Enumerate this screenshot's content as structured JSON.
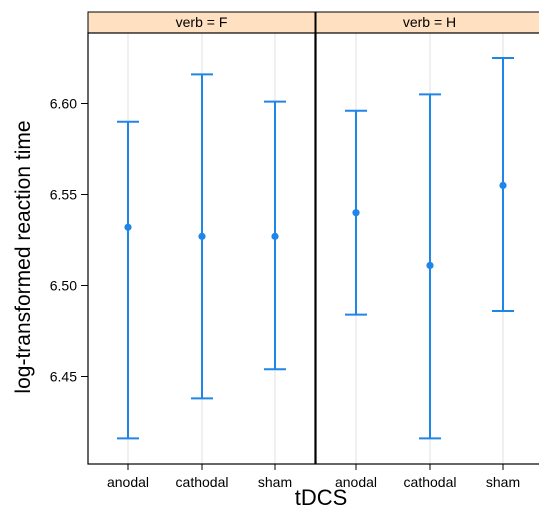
{
  "chart_data": {
    "type": "scatter",
    "subtype": "point-with-error-bars",
    "xlabel": "tDCS",
    "ylabel": "log-transformed reaction time",
    "categories": [
      "anodal",
      "cathodal",
      "sham"
    ],
    "ylim": [
      6.4,
      6.64
    ],
    "yticks": [
      6.45,
      6.5,
      6.55,
      6.6
    ],
    "ytick_labels": [
      "6.45",
      "6.50",
      "6.55",
      "6.60"
    ],
    "grid": "vertical lines at categories",
    "colors": {
      "series": "#1f86e8",
      "strip": "#ffe0c0",
      "grid": "#e5e5e5",
      "frame": "#000000"
    },
    "panels": [
      {
        "label": "verb = F",
        "points": [
          {
            "category": "anodal",
            "mean": 6.532,
            "lower": 6.416,
            "upper": 6.59
          },
          {
            "category": "cathodal",
            "mean": 6.527,
            "lower": 6.438,
            "upper": 6.616
          },
          {
            "category": "sham",
            "mean": 6.527,
            "lower": 6.454,
            "upper": 6.601
          }
        ]
      },
      {
        "label": "verb = H",
        "points": [
          {
            "category": "anodal",
            "mean": 6.54,
            "lower": 6.484,
            "upper": 6.596
          },
          {
            "category": "cathodal",
            "mean": 6.511,
            "lower": 6.416,
            "upper": 6.605
          },
          {
            "category": "sham",
            "mean": 6.555,
            "lower": 6.486,
            "upper": 6.625
          }
        ]
      }
    ]
  }
}
